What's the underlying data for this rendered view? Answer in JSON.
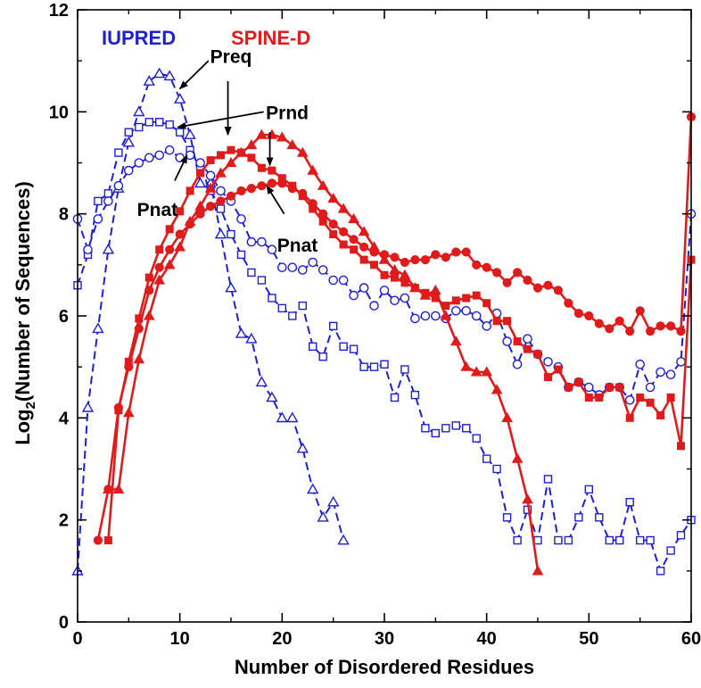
{
  "chart_data": {
    "type": "line",
    "xlabel": "Number of Disordered Residues",
    "ylabel": "Log",
    "ylabel_sub": "2",
    "ylabel_rest": "(Number of Sequences)",
    "xlim": [
      0,
      60
    ],
    "ylim": [
      0,
      12
    ],
    "xticks": [
      0,
      10,
      20,
      30,
      40,
      50,
      60
    ],
    "yticks": [
      0,
      2,
      4,
      6,
      8,
      10,
      12
    ],
    "grid": false,
    "group_labels": [
      {
        "text": "IUPRED",
        "color": "#1f1fd6"
      },
      {
        "text": "SPINE-D",
        "color": "#e01b1b"
      }
    ],
    "annotations": [
      {
        "text": "Preq",
        "x": 15,
        "y": 11.1
      },
      {
        "text": "Prnd",
        "x": 20.5,
        "y": 10.0
      },
      {
        "text": "Pnat",
        "x": 7.8,
        "y": 8.1
      },
      {
        "text": "Pnat",
        "x": 21.5,
        "y": 7.4
      }
    ],
    "series": [
      {
        "name": "IUPRED Preq",
        "group": "IUPRED",
        "marker": "triangle",
        "filled": false,
        "dashed": true,
        "color": "#1f1fd6",
        "x": [
          0,
          1,
          2,
          3,
          4,
          5,
          6,
          7,
          8,
          9,
          10,
          11,
          12,
          13,
          14,
          15,
          16,
          17,
          18,
          19,
          20,
          21,
          22,
          23,
          24,
          25,
          26
        ],
        "y": [
          1.0,
          4.2,
          5.75,
          7.3,
          8.5,
          9.4,
          10.0,
          10.6,
          10.75,
          10.7,
          10.25,
          9.55,
          8.6,
          8.6,
          7.6,
          6.55,
          5.65,
          5.55,
          4.7,
          4.4,
          4.0,
          4.0,
          3.4,
          2.6,
          2.05,
          2.35,
          1.6
        ]
      },
      {
        "name": "IUPRED Prnd",
        "group": "IUPRED",
        "marker": "square",
        "filled": false,
        "dashed": true,
        "color": "#1f1fd6",
        "x": [
          0,
          1,
          2,
          3,
          4,
          5,
          6,
          7,
          8,
          9,
          10,
          11,
          12,
          13,
          14,
          15,
          16,
          17,
          18,
          19,
          20,
          21,
          22,
          23,
          24,
          25,
          26,
          27,
          28,
          29,
          30,
          31,
          32,
          33,
          34,
          35,
          36,
          37,
          38,
          39,
          40,
          41,
          42,
          43,
          44,
          45,
          46,
          47,
          48,
          49,
          50,
          51,
          52,
          53,
          54,
          55,
          56,
          57,
          58,
          59,
          60
        ],
        "y": [
          6.6,
          7.2,
          8.25,
          8.4,
          9.2,
          9.6,
          9.7,
          9.8,
          9.8,
          9.75,
          9.6,
          9.25,
          8.9,
          8.45,
          8.1,
          7.6,
          7.2,
          6.85,
          6.7,
          6.35,
          6.15,
          6.0,
          6.2,
          5.4,
          5.2,
          5.8,
          5.4,
          5.35,
          5.0,
          5.0,
          5.05,
          4.4,
          4.95,
          4.45,
          3.8,
          3.7,
          3.8,
          3.85,
          3.8,
          3.6,
          3.2,
          3.0,
          2.05,
          1.6,
          2.2,
          1.6,
          2.8,
          1.6,
          1.6,
          2.05,
          2.6,
          2.05,
          1.6,
          1.6,
          2.35,
          1.6,
          1.6,
          1.0,
          1.4,
          1.7,
          2.0
        ]
      },
      {
        "name": "IUPRED Pnat",
        "group": "IUPRED",
        "marker": "circle",
        "filled": false,
        "dashed": true,
        "color": "#1f1fd6",
        "x": [
          0,
          1,
          2,
          3,
          4,
          5,
          6,
          7,
          8,
          9,
          10,
          11,
          12,
          13,
          14,
          15,
          16,
          17,
          18,
          19,
          20,
          21,
          22,
          23,
          24,
          25,
          26,
          27,
          28,
          29,
          30,
          31,
          32,
          33,
          34,
          35,
          36,
          37,
          38,
          39,
          40,
          41,
          42,
          43,
          44,
          45,
          46,
          47,
          48,
          49,
          50,
          51,
          52,
          53,
          54,
          55,
          56,
          57,
          58,
          59,
          60
        ],
        "y": [
          7.9,
          7.3,
          7.9,
          8.25,
          8.55,
          8.85,
          9.0,
          9.1,
          9.15,
          9.25,
          9.1,
          9.15,
          9.0,
          8.75,
          8.45,
          8.25,
          7.9,
          7.45,
          7.45,
          7.3,
          6.95,
          6.95,
          6.9,
          7.05,
          6.9,
          6.7,
          6.7,
          6.4,
          6.55,
          6.2,
          6.5,
          6.3,
          6.35,
          5.95,
          6.0,
          6.0,
          5.95,
          6.1,
          6.1,
          6.0,
          5.8,
          6.05,
          5.5,
          5.05,
          5.55,
          5.25,
          5.1,
          5.0,
          4.6,
          4.7,
          4.6,
          4.45,
          4.6,
          4.6,
          4.35,
          5.05,
          4.6,
          4.9,
          4.85,
          5.1,
          8.0
        ]
      },
      {
        "name": "SPINE-D Preq",
        "group": "SPINE-D",
        "marker": "triangle",
        "filled": true,
        "dashed": false,
        "color": "#e01b1b",
        "x": [
          3,
          4,
          5,
          6,
          7,
          8,
          9,
          10,
          11,
          12,
          13,
          14,
          15,
          16,
          17,
          18,
          19,
          20,
          21,
          22,
          23,
          24,
          25,
          26,
          27,
          28,
          29,
          30,
          31,
          32,
          33,
          34,
          35,
          36,
          37,
          38,
          39,
          40,
          41,
          42,
          43,
          44,
          45
        ],
        "y": [
          2.6,
          2.6,
          4.1,
          5.15,
          6.0,
          6.7,
          7.0,
          7.35,
          7.85,
          8.15,
          8.5,
          8.8,
          9.0,
          9.2,
          9.35,
          9.55,
          9.55,
          9.5,
          9.35,
          9.2,
          8.85,
          8.55,
          8.3,
          8.1,
          7.9,
          7.65,
          7.35,
          7.1,
          6.9,
          6.8,
          6.55,
          6.4,
          6.5,
          6.0,
          5.5,
          5.0,
          4.9,
          4.9,
          4.55,
          4.0,
          3.2,
          2.4,
          1.0
        ]
      },
      {
        "name": "SPINE-D Prnd",
        "group": "SPINE-D",
        "marker": "square",
        "filled": true,
        "dashed": false,
        "color": "#e01b1b",
        "x": [
          3,
          4,
          5,
          6,
          7,
          8,
          9,
          10,
          11,
          12,
          13,
          14,
          15,
          16,
          17,
          18,
          19,
          20,
          21,
          22,
          23,
          24,
          25,
          26,
          27,
          28,
          29,
          30,
          31,
          32,
          33,
          34,
          35,
          36,
          37,
          38,
          39,
          40,
          41,
          42,
          43,
          44,
          45,
          46,
          47,
          48,
          49,
          50,
          51,
          52,
          53,
          54,
          55,
          56,
          57,
          58,
          59,
          60
        ],
        "y": [
          1.6,
          4.15,
          5.1,
          5.95,
          6.75,
          7.3,
          7.7,
          8.05,
          8.45,
          8.8,
          9.05,
          9.15,
          9.25,
          9.2,
          9.1,
          8.9,
          8.85,
          8.7,
          8.55,
          8.35,
          8.1,
          7.85,
          7.6,
          7.4,
          7.3,
          7.1,
          7.0,
          6.8,
          6.75,
          6.65,
          6.55,
          6.45,
          6.35,
          6.2,
          6.3,
          6.35,
          6.4,
          6.25,
          5.9,
          5.9,
          5.5,
          5.35,
          5.25,
          4.8,
          4.95,
          4.6,
          4.7,
          4.4,
          4.4,
          4.6,
          4.6,
          4.0,
          4.4,
          4.3,
          4.05,
          4.4,
          3.45,
          7.1
        ]
      },
      {
        "name": "SPINE-D Pnat",
        "group": "SPINE-D",
        "marker": "circle",
        "filled": true,
        "dashed": false,
        "color": "#e01b1b",
        "x": [
          2,
          3,
          4,
          5,
          6,
          7,
          8,
          9,
          10,
          11,
          12,
          13,
          14,
          15,
          16,
          17,
          18,
          19,
          20,
          21,
          22,
          23,
          24,
          25,
          26,
          27,
          28,
          29,
          30,
          31,
          32,
          33,
          34,
          35,
          36,
          37,
          38,
          39,
          40,
          41,
          42,
          43,
          44,
          45,
          46,
          47,
          48,
          49,
          50,
          51,
          52,
          53,
          54,
          55,
          56,
          57,
          58,
          59,
          60
        ],
        "y": [
          1.6,
          2.6,
          4.2,
          5.0,
          5.75,
          6.5,
          6.95,
          7.3,
          7.6,
          7.8,
          8.0,
          8.15,
          8.25,
          8.35,
          8.45,
          8.5,
          8.55,
          8.6,
          8.6,
          8.5,
          8.4,
          8.2,
          8.0,
          7.8,
          7.65,
          7.5,
          7.35,
          7.25,
          7.2,
          7.15,
          7.05,
          7.1,
          7.1,
          7.2,
          7.15,
          7.25,
          7.25,
          7.0,
          6.95,
          6.85,
          6.65,
          6.85,
          6.7,
          6.55,
          6.6,
          6.5,
          6.25,
          6.05,
          6.0,
          5.85,
          5.75,
          5.9,
          5.7,
          6.1,
          5.7,
          5.8,
          5.8,
          5.7,
          9.9
        ]
      }
    ]
  }
}
